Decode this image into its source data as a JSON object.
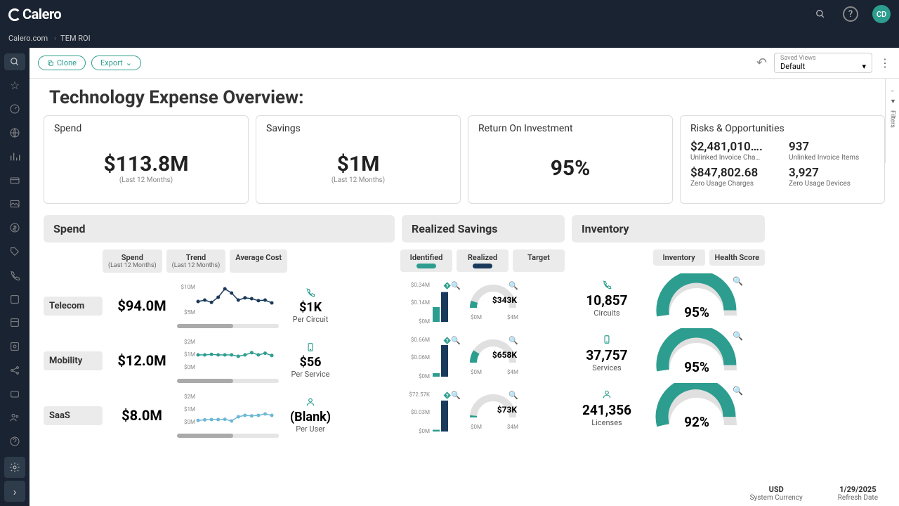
{
  "header": {
    "logo": "Calero",
    "avatar": "CD"
  },
  "breadcrumb": [
    "Calero.com",
    "TEM ROI"
  ],
  "toolbar": {
    "clone": "Clone",
    "export": "Export",
    "saved_views_label": "Saved Views",
    "saved_views_value": "Default"
  },
  "page_title": "Technology Expense Overview:",
  "filter_label": "Filters",
  "kpi": {
    "spend": {
      "title": "Spend",
      "value": "$113.8M",
      "sub": "(Last 12 Months)"
    },
    "savings": {
      "title": "Savings",
      "value": "$1M",
      "sub": "(Last 12 Months)"
    },
    "roi": {
      "title": "Return On Investment",
      "value": "95%"
    },
    "risks": {
      "title": "Risks & Opportunities",
      "items": [
        {
          "val": "$2,481,010….",
          "lbl": "Unlinked Invoice Cha…"
        },
        {
          "val": "937",
          "lbl": "Unlinked Invoice Items"
        },
        {
          "val": "$847,802.68",
          "lbl": "Zero Usage Charges"
        },
        {
          "val": "3,927",
          "lbl": "Zero Usage Devices"
        }
      ]
    }
  },
  "sections": {
    "spend": {
      "title": "Spend",
      "tabs": [
        {
          "label": "Spend",
          "sub": "(Last 12 Months)"
        },
        {
          "label": "Trend",
          "sub": "(Last 12 Months)"
        },
        {
          "label": "Average Cost"
        }
      ]
    },
    "savings": {
      "title": "Realized Savings",
      "tabs": [
        {
          "label": "Identified",
          "pill": "#2d9d8f"
        },
        {
          "label": "Realized",
          "pill": "#1a3a5c"
        },
        {
          "label": "Target"
        }
      ]
    },
    "inventory": {
      "title": "Inventory",
      "tabs": [
        {
          "label": "Inventory"
        },
        {
          "label": "Health Score"
        }
      ]
    }
  },
  "rows": [
    {
      "label": "Telecom",
      "spend": "$94.0M",
      "trend": {
        "ylabels": [
          "$10M",
          "$5M"
        ],
        "color": "#1a3a5c",
        "points": [
          0.55,
          0.5,
          0.58,
          0.4,
          0.1,
          0.25,
          0.5,
          0.42,
          0.45,
          0.52,
          0.5,
          0.6
        ]
      },
      "avg": {
        "icon": "phone",
        "value": "$1K",
        "label": "Per Circuit"
      },
      "bar": {
        "top": "$0.34M",
        "mid": "$0.14M",
        "identified": 0.42,
        "realized": 0.85
      },
      "gauge": {
        "value": "$343K",
        "fill": 0.1,
        "color": "#2d9d8f",
        "max": "$4M"
      },
      "inv": {
        "icon": "phone",
        "value": "10,857",
        "label": "Circuits"
      },
      "health": {
        "value": "95%",
        "fill": 0.95
      }
    },
    {
      "label": "Mobility",
      "spend": "$12.0M",
      "trend": {
        "ylabels": [
          "$2M",
          "$1M",
          "$0M"
        ],
        "color": "#2d9d8f",
        "points": [
          0.5,
          0.5,
          0.48,
          0.5,
          0.5,
          0.5,
          0.55,
          0.5,
          0.42,
          0.5,
          0.44,
          0.52
        ]
      },
      "avg": {
        "icon": "device",
        "value": "$56",
        "label": "Per Service"
      },
      "bar": {
        "top": "$0.66M",
        "mid": "$0.06M",
        "identified": 0.1,
        "realized": 0.9
      },
      "gauge": {
        "value": "$658K",
        "fill": 0.18,
        "color": "#2d9d8f",
        "max": "$4M"
      },
      "inv": {
        "icon": "device",
        "value": "37,757",
        "label": "Services"
      },
      "health": {
        "value": "95%",
        "fill": 0.95
      }
    },
    {
      "label": "SaaS",
      "spend": "$8.0M",
      "trend": {
        "ylabels": [
          "$2M",
          "$1M",
          "$0M"
        ],
        "color": "#6db8d4",
        "points": [
          0.88,
          0.86,
          0.85,
          0.85,
          0.84,
          0.9,
          0.75,
          0.7,
          0.72,
          0.7,
          0.65,
          0.7
        ]
      },
      "avg": {
        "icon": "user",
        "value": "(Blank)",
        "label": "Per User"
      },
      "bar": {
        "top": "$72.57K",
        "mid": "$0.03M",
        "identified": 0.05,
        "realized": 0.88
      },
      "gauge": {
        "value": "$73K",
        "fill": 0.03,
        "color": "#2d9d8f",
        "max": "$4M"
      },
      "inv": {
        "icon": "user",
        "value": "241,356",
        "label": "Licenses"
      },
      "health": {
        "value": "92%",
        "fill": 0.92
      }
    }
  ],
  "footer": {
    "currency": {
      "val": "USD",
      "lbl": "System Currency"
    },
    "date": {
      "val": "1/29/2025",
      "lbl": "Refresh Date"
    }
  }
}
